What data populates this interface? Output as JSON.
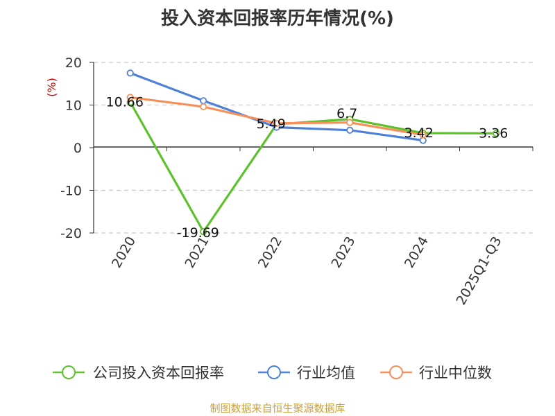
{
  "chart_data": {
    "type": "line",
    "title": "投入资本回报率历年情况(%)",
    "ylabel": "(%)",
    "categories": [
      "2020",
      "2021",
      "2022",
      "2023",
      "2024",
      "2025Q1-Q3"
    ],
    "ylim": [
      -20,
      20
    ],
    "yticks": [
      20,
      10,
      0,
      -10,
      -20
    ],
    "grid": true,
    "legend_position": "bottom",
    "series": [
      {
        "name": "公司投入资本回报率",
        "color": "#5cc12a",
        "values": [
          10.66,
          -19.69,
          5.49,
          6.7,
          3.42,
          3.36
        ],
        "labels": [
          "10.66",
          "-19.69",
          "5.49",
          "6.7",
          "3.42",
          "3.36"
        ]
      },
      {
        "name": "行业均值",
        "color": "#4e80d8",
        "values": [
          17.5,
          11.0,
          4.8,
          4.1,
          1.7,
          null
        ]
      },
      {
        "name": "行业中位数",
        "color": "#f5905a",
        "values": [
          11.8,
          9.6,
          5.7,
          5.9,
          3.0,
          null
        ]
      }
    ],
    "source": "制图数据来自恒生聚源数据库"
  }
}
